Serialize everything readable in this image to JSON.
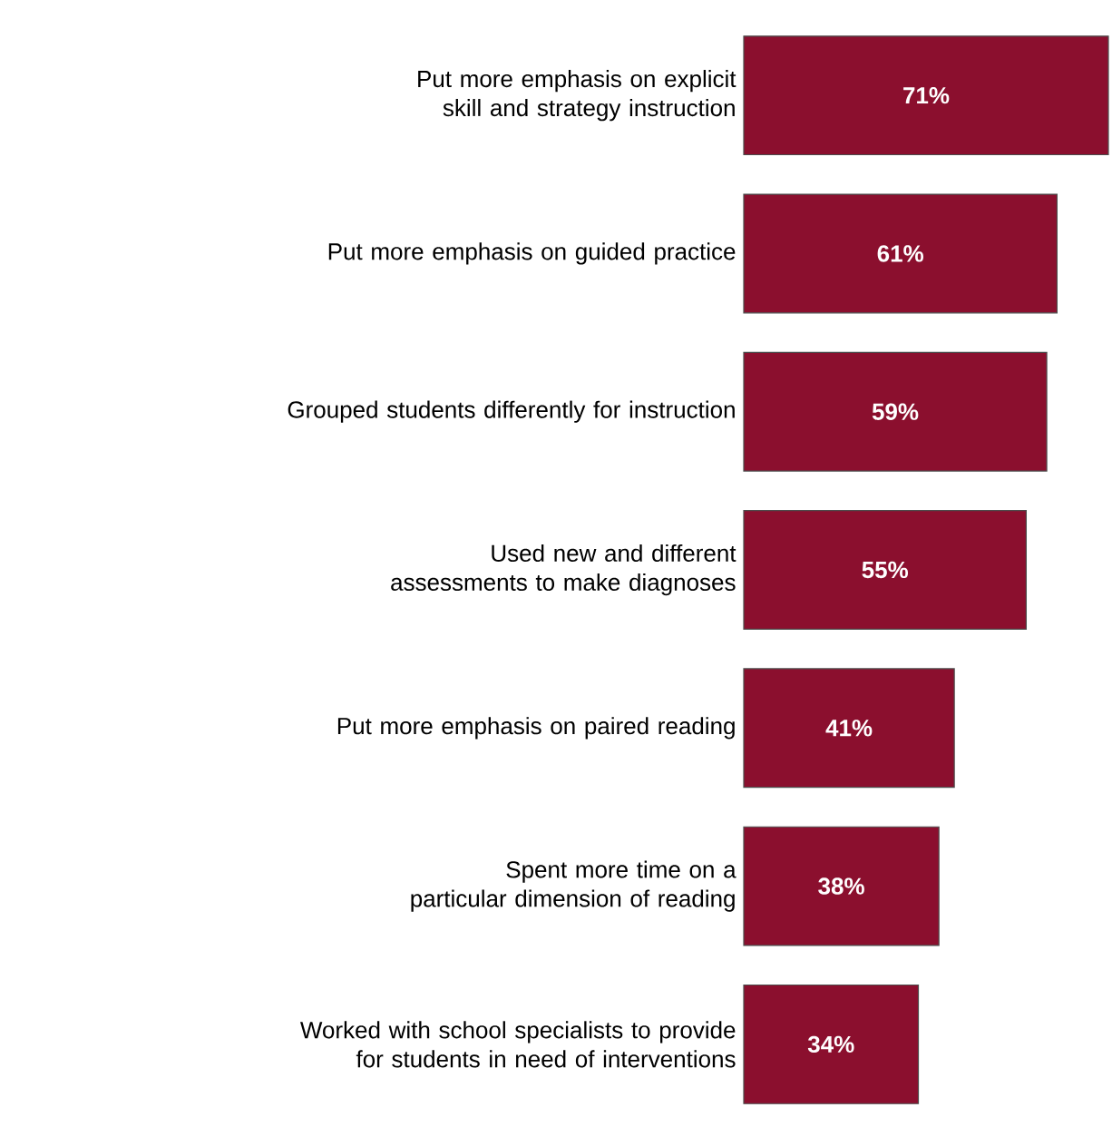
{
  "chart_data": {
    "type": "bar",
    "orientation": "horizontal",
    "categories": [
      "Put more emphasis on explicit skill and strategy instruction",
      "Put more emphasis on guided practice",
      "Grouped students differently for instruction",
      "Used new and different assessments to make diagnoses",
      "Put more emphasis on paired reading",
      "Spent more time on a particular dimension of reading",
      "Worked with school specialists to provide for students in need of interventions"
    ],
    "values": [
      71,
      61,
      59,
      55,
      41,
      38,
      34
    ],
    "value_labels": [
      "71%",
      "61%",
      "59%",
      "55%",
      "41%",
      "38%",
      "34%"
    ],
    "color": "#8b0f2e"
  }
}
